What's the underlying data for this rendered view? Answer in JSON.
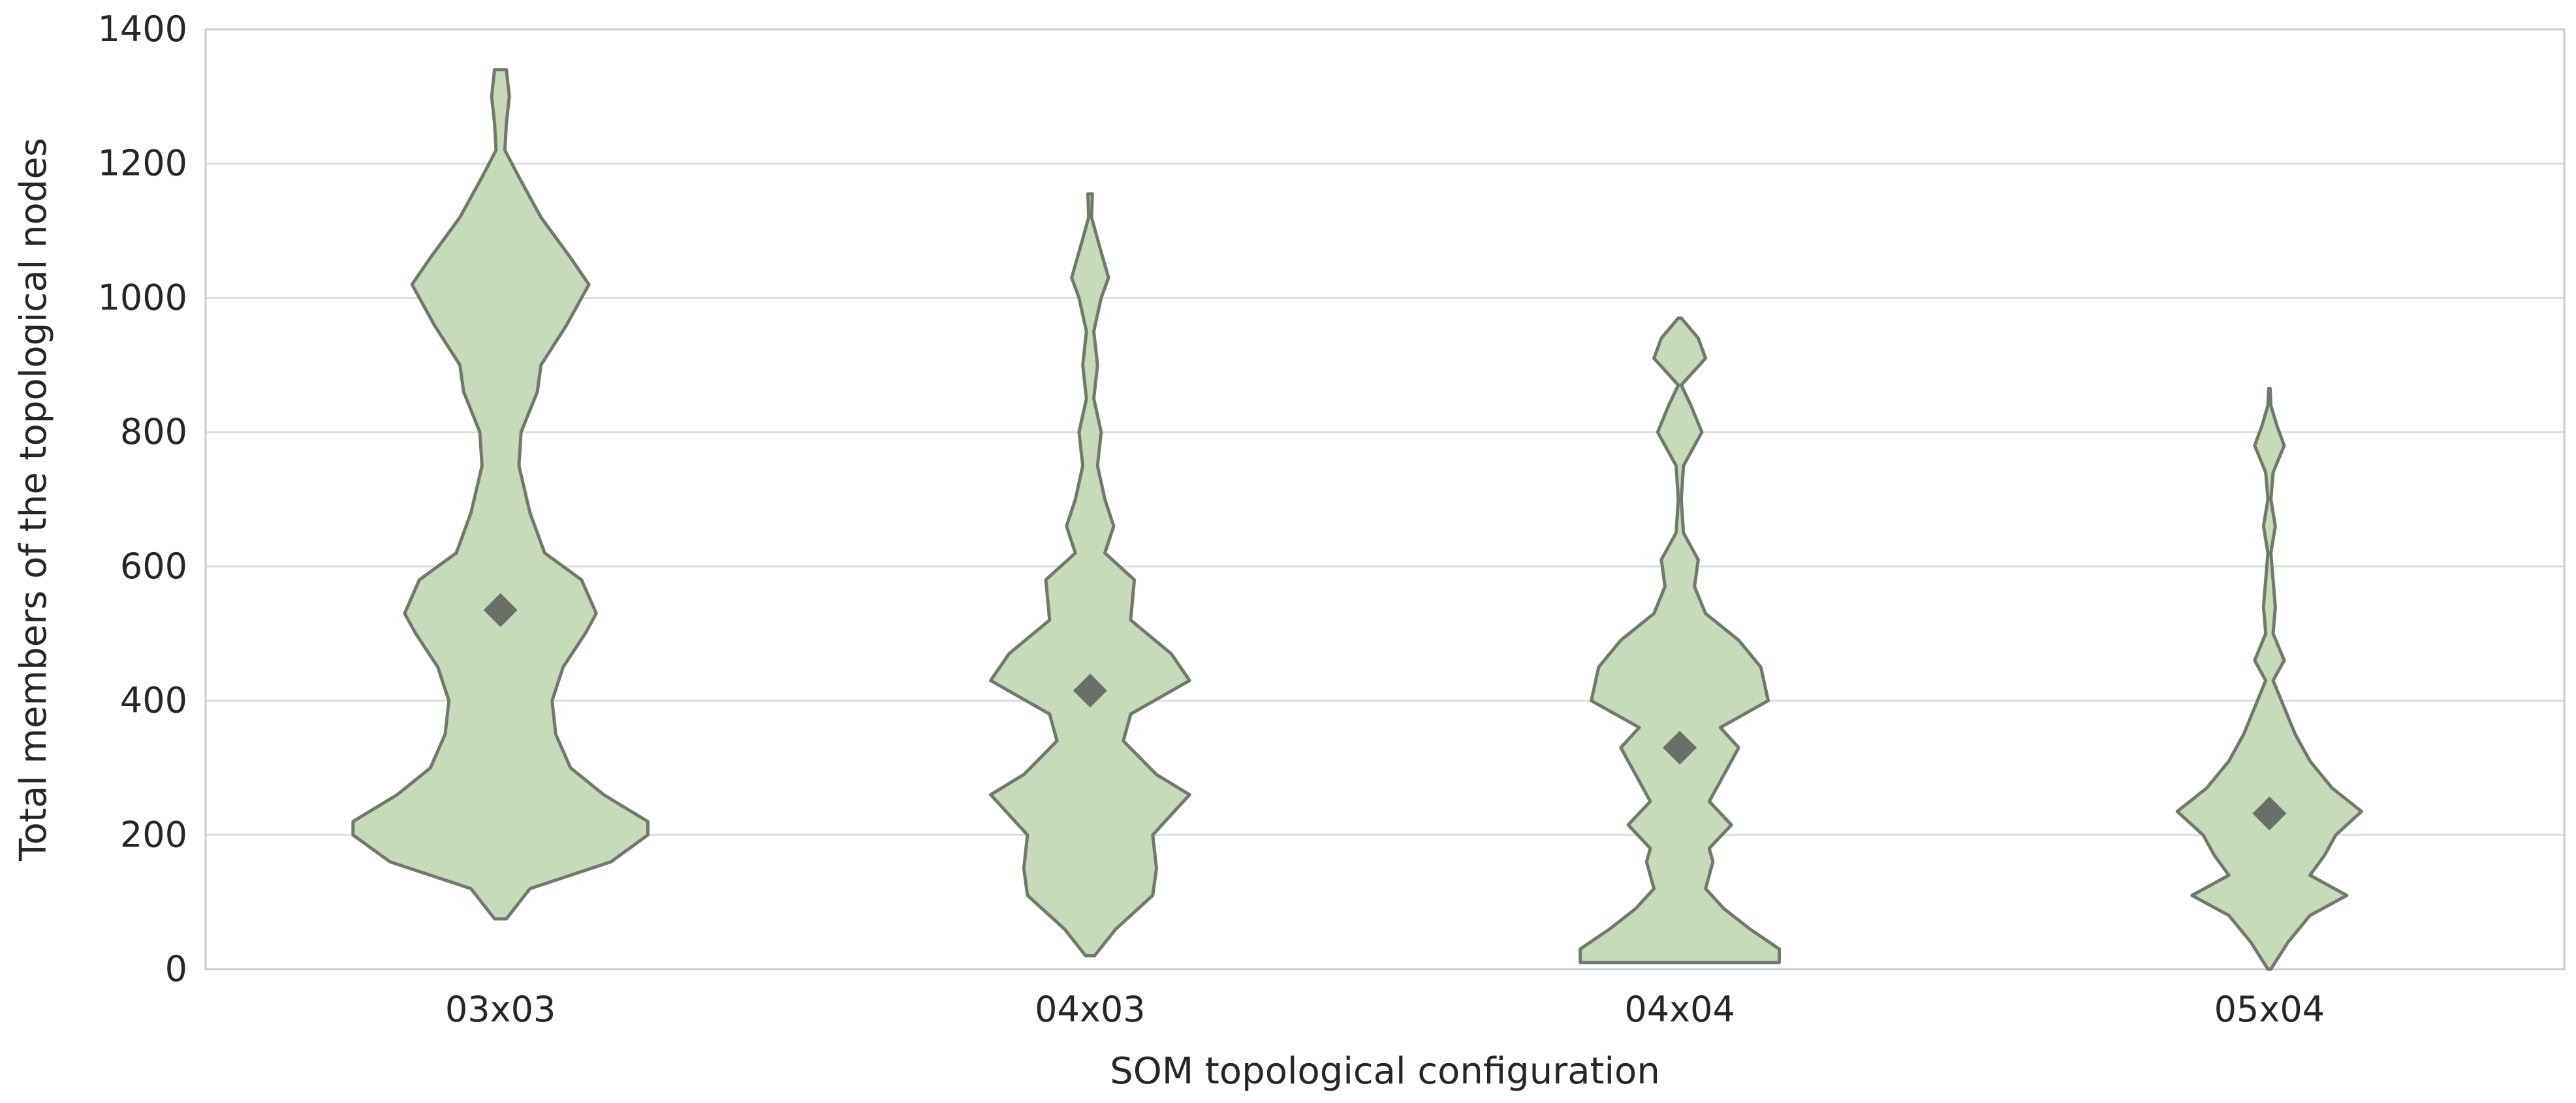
{
  "chart_data": {
    "type": "violin",
    "title": "",
    "xlabel": "SOM topological configuration",
    "ylabel": "Total members of the topological nodes",
    "ylim": [
      0,
      1400
    ],
    "yticks": [
      0,
      200,
      400,
      600,
      800,
      1000,
      1200,
      1400
    ],
    "categories": [
      "03x03",
      "04x03",
      "04x04",
      "05x04"
    ],
    "grid": "horizontal",
    "legend": "none",
    "colors": {
      "violin_fill": "#c8dbb8",
      "violin_stroke": "#707a6b",
      "marker": "#6a6f6a",
      "grid": "#dedede",
      "frame": "#cccccc"
    },
    "series": [
      {
        "category": "03x03",
        "mean": 535,
        "range": [
          75,
          1340
        ],
        "profile": [
          [
            75,
            8
          ],
          [
            120,
            40
          ],
          [
            160,
            150
          ],
          [
            200,
            200
          ],
          [
            220,
            200
          ],
          [
            260,
            140
          ],
          [
            300,
            95
          ],
          [
            350,
            75
          ],
          [
            400,
            70
          ],
          [
            450,
            85
          ],
          [
            500,
            115
          ],
          [
            530,
            130
          ],
          [
            580,
            110
          ],
          [
            620,
            60
          ],
          [
            680,
            40
          ],
          [
            750,
            25
          ],
          [
            800,
            28
          ],
          [
            860,
            50
          ],
          [
            900,
            55
          ],
          [
            960,
            90
          ],
          [
            1020,
            120
          ],
          [
            1060,
            95
          ],
          [
            1120,
            55
          ],
          [
            1180,
            25
          ],
          [
            1220,
            6
          ],
          [
            1260,
            8
          ],
          [
            1300,
            12
          ],
          [
            1340,
            8
          ]
        ]
      },
      {
        "category": "04x03",
        "mean": 415,
        "range": [
          20,
          1155
        ],
        "profile": [
          [
            20,
            6
          ],
          [
            60,
            35
          ],
          [
            110,
            85
          ],
          [
            150,
            90
          ],
          [
            200,
            85
          ],
          [
            260,
            135
          ],
          [
            290,
            90
          ],
          [
            340,
            45
          ],
          [
            380,
            55
          ],
          [
            430,
            135
          ],
          [
            470,
            110
          ],
          [
            520,
            55
          ],
          [
            580,
            60
          ],
          [
            620,
            20
          ],
          [
            660,
            32
          ],
          [
            700,
            20
          ],
          [
            750,
            10
          ],
          [
            800,
            15
          ],
          [
            850,
            5
          ],
          [
            900,
            10
          ],
          [
            950,
            5
          ],
          [
            1000,
            15
          ],
          [
            1030,
            25
          ],
          [
            1080,
            12
          ],
          [
            1120,
            2
          ],
          [
            1155,
            3
          ]
        ]
      },
      {
        "category": "04x04",
        "mean": 330,
        "range": [
          10,
          970
        ],
        "profile": [
          [
            10,
            135
          ],
          [
            30,
            135
          ],
          [
            60,
            95
          ],
          [
            90,
            60
          ],
          [
            120,
            35
          ],
          [
            160,
            45
          ],
          [
            180,
            40
          ],
          [
            215,
            70
          ],
          [
            250,
            40
          ],
          [
            290,
            60
          ],
          [
            330,
            80
          ],
          [
            360,
            55
          ],
          [
            400,
            120
          ],
          [
            450,
            110
          ],
          [
            490,
            80
          ],
          [
            530,
            35
          ],
          [
            570,
            20
          ],
          [
            610,
            25
          ],
          [
            650,
            5
          ],
          [
            700,
            2
          ],
          [
            750,
            5
          ],
          [
            800,
            30
          ],
          [
            840,
            15
          ],
          [
            870,
            2
          ],
          [
            910,
            35
          ],
          [
            940,
            25
          ],
          [
            970,
            2
          ]
        ]
      },
      {
        "category": "05x04",
        "mean": 232,
        "range": [
          0,
          865
        ],
        "profile": [
          [
            0,
            2
          ],
          [
            40,
            25
          ],
          [
            80,
            55
          ],
          [
            110,
            105
          ],
          [
            140,
            55
          ],
          [
            170,
            75
          ],
          [
            200,
            90
          ],
          [
            235,
            125
          ],
          [
            270,
            85
          ],
          [
            310,
            55
          ],
          [
            350,
            35
          ],
          [
            390,
            20
          ],
          [
            430,
            5
          ],
          [
            460,
            20
          ],
          [
            500,
            5
          ],
          [
            540,
            8
          ],
          [
            580,
            5
          ],
          [
            620,
            2
          ],
          [
            660,
            8
          ],
          [
            700,
            2
          ],
          [
            740,
            5
          ],
          [
            780,
            20
          ],
          [
            810,
            10
          ],
          [
            840,
            2
          ],
          [
            865,
            1
          ]
        ]
      }
    ]
  }
}
